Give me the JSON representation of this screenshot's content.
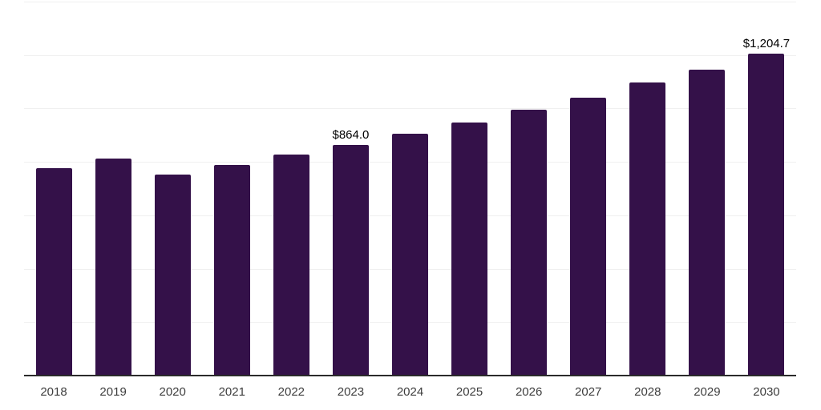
{
  "chart_data": {
    "type": "bar",
    "title": "",
    "xlabel": "",
    "ylabel": "",
    "categories": [
      "2018",
      "2019",
      "2020",
      "2021",
      "2022",
      "2023",
      "2024",
      "2025",
      "2026",
      "2027",
      "2028",
      "2029",
      "2030"
    ],
    "values": [
      776,
      813,
      753,
      787,
      827,
      864.0,
      905,
      946,
      994,
      1040,
      1097,
      1146,
      1204.7
    ],
    "value_labels": [
      {
        "category": "2023",
        "index": 5,
        "text": "$864.0"
      },
      {
        "category": "2030",
        "index": 12,
        "text": "$1,204.7"
      }
    ],
    "ylim": [
      0,
      1400
    ],
    "grid_step": 200,
    "grid": "horizontal-only",
    "y_tick_labels_visible": false,
    "legend": "none"
  },
  "colors": {
    "bar": "#341149",
    "gridline": "#f0f0f0",
    "axis_line": "#2b2b2b",
    "x_tick_label": "#3d3d3d",
    "data_label": "#000000",
    "background": "#ffffff"
  }
}
